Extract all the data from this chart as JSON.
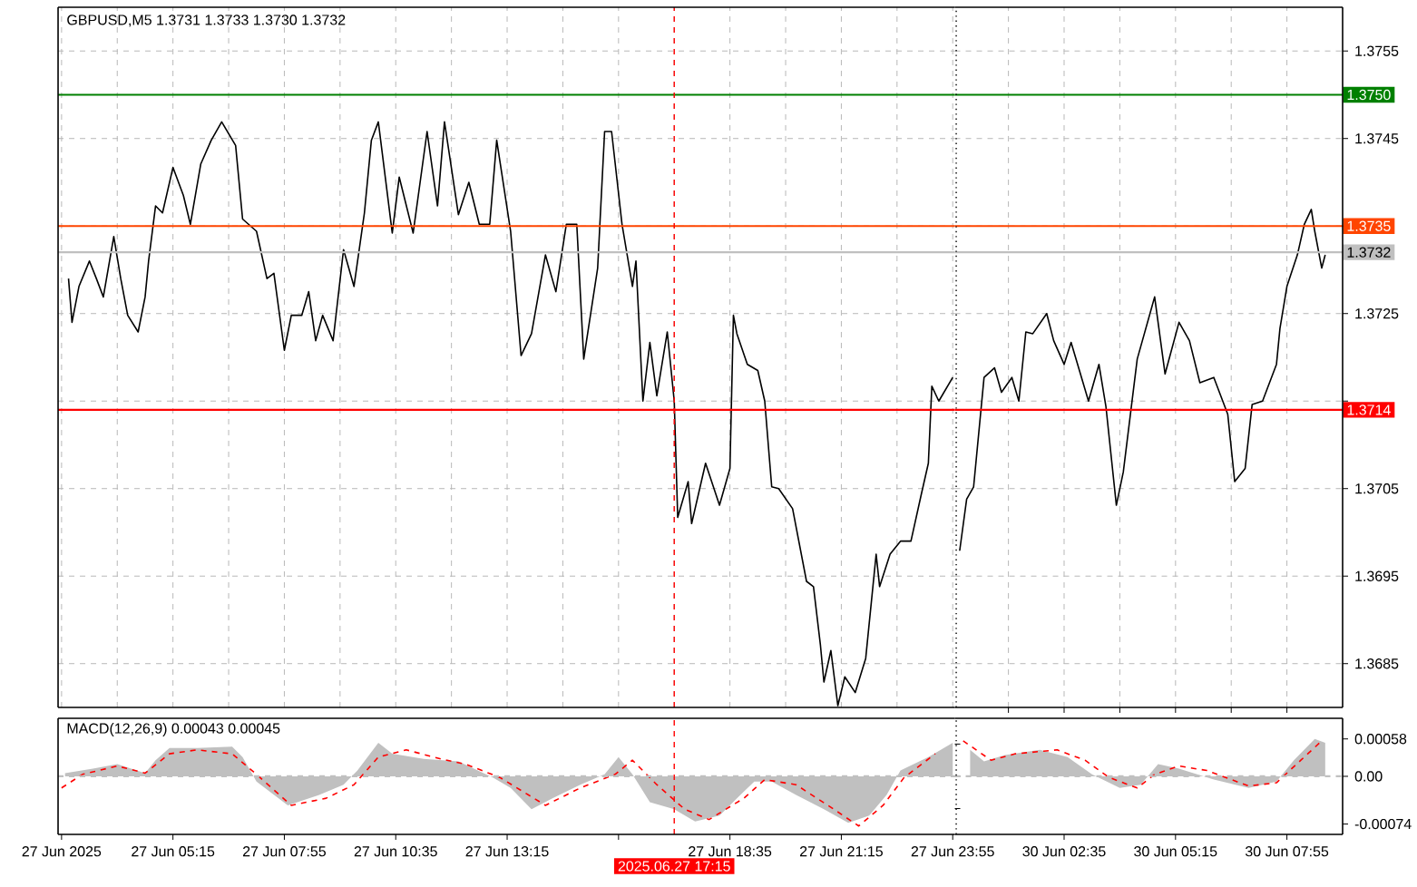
{
  "chart_data": [
    {
      "type": "line",
      "title": "GBPUSD,M5  1.3731 1.3733 1.3730 1.3732",
      "series": [
        {
          "color": "#000000",
          "x": [
            "2025-06-27T02:45",
            "2025-06-27T02:50",
            "2025-06-27T03:00",
            "2025-06-27T03:15",
            "2025-06-27T03:25",
            "2025-06-27T03:35",
            "2025-06-27T03:50",
            "2025-06-27T04:00",
            "2025-06-27T04:10",
            "2025-06-27T04:25",
            "2025-06-27T04:35",
            "2025-06-27T04:40",
            "2025-06-27T04:50",
            "2025-06-27T05:00",
            "2025-06-27T05:15",
            "2025-06-27T05:30",
            "2025-06-27T05:40",
            "2025-06-27T05:55",
            "2025-06-27T06:10",
            "2025-06-27T06:25",
            "2025-06-27T06:45",
            "2025-06-27T06:55",
            "2025-06-27T07:15",
            "2025-06-27T07:30",
            "2025-06-27T07:40",
            "2025-06-27T07:55",
            "2025-06-27T08:05",
            "2025-06-27T08:20",
            "2025-06-27T08:30",
            "2025-06-27T08:40",
            "2025-06-27T08:50",
            "2025-06-27T09:05",
            "2025-06-27T09:20",
            "2025-06-27T09:35",
            "2025-06-27T09:50",
            "2025-06-27T10:00",
            "2025-06-27T10:10",
            "2025-06-27T10:30",
            "2025-06-27T10:40",
            "2025-06-27T11:00",
            "2025-06-27T11:20",
            "2025-06-27T11:35",
            "2025-06-27T11:45",
            "2025-06-27T12:05",
            "2025-06-27T12:20",
            "2025-06-27T12:35",
            "2025-06-27T12:50",
            "2025-06-27T13:00",
            "2025-06-27T13:20",
            "2025-06-27T13:35",
            "2025-06-27T13:50",
            "2025-06-27T14:10",
            "2025-06-27T14:25",
            "2025-06-27T14:40",
            "2025-06-27T14:55",
            "2025-06-27T15:05",
            "2025-06-27T15:25",
            "2025-06-27T15:35",
            "2025-06-27T15:45",
            "2025-06-27T16:00",
            "2025-06-27T16:15",
            "2025-06-27T16:20",
            "2025-06-27T16:30",
            "2025-06-27T16:40",
            "2025-06-27T16:50",
            "2025-06-27T17:05",
            "2025-06-27T17:15",
            "2025-06-27T17:20",
            "2025-06-27T17:35",
            "2025-06-27T17:40",
            "2025-06-27T18:00",
            "2025-06-27T18:20",
            "2025-06-27T18:35",
            "2025-06-27T18:40",
            "2025-06-27T18:45",
            "2025-06-27T19:00",
            "2025-06-27T19:15",
            "2025-06-27T19:25",
            "2025-06-27T19:35",
            "2025-06-27T19:45",
            "2025-06-27T20:05",
            "2025-06-27T20:25",
            "2025-06-27T20:35",
            "2025-06-27T20:45",
            "2025-06-27T20:50",
            "2025-06-27T21:00",
            "2025-06-27T21:10",
            "2025-06-27T21:20",
            "2025-06-27T21:35",
            "2025-06-27T21:50",
            "2025-06-27T22:05",
            "2025-06-27T22:10",
            "2025-06-27T22:25",
            "2025-06-27T22:40",
            "2025-06-27T22:55",
            "2025-06-27T23:10",
            "2025-06-27T23:20",
            "2025-06-27T23:25",
            "2025-06-27T23:35",
            "2025-06-27T23:55"
          ],
          "values": [
            1.3729,
            1.3724,
            1.37281,
            1.3731,
            1.3729,
            1.37269,
            1.37338,
            1.3729,
            1.37248,
            1.37229,
            1.37269,
            1.3731,
            1.37373,
            1.37365,
            1.37417,
            1.37385,
            1.37352,
            1.37421,
            1.37448,
            1.37469,
            1.37442,
            1.37358,
            1.37344,
            1.3729,
            1.37296,
            1.37208,
            1.37248,
            1.37248,
            1.37275,
            1.37219,
            1.37248,
            1.37219,
            1.37323,
            1.37281,
            1.37365,
            1.37448,
            1.37469,
            1.37342,
            1.37406,
            1.37342,
            1.37458,
            1.37373,
            1.37469,
            1.37363,
            1.374,
            1.37352,
            1.37352,
            1.37448,
            1.37344,
            1.37202,
            1.37227,
            1.37317,
            1.37275,
            1.37352,
            1.37352,
            1.37198,
            1.37302,
            1.37458,
            1.37458,
            1.37352,
            1.37281,
            1.3731,
            1.3715,
            1.37217,
            1.37156,
            1.37229,
            1.3715,
            1.37017,
            1.37058,
            1.3701,
            1.37079,
            1.37031,
            1.37073,
            1.37248,
            1.37227,
            1.37192,
            1.37185,
            1.3715,
            1.37052,
            1.3705,
            1.37027,
            1.36944,
            1.36938,
            1.36871,
            1.36829,
            1.36865,
            1.36802,
            1.36835,
            1.36817,
            1.36856,
            1.36975,
            1.36938,
            1.36975,
            1.3699,
            1.3699,
            1.37044,
            1.37079,
            1.37167,
            1.3715,
            1.37177
          ]
        }
      ],
      "xlim": [
        "2025-06-27T02:30",
        "2025-06-27T23:58"
      ],
      "xticks": [
        {
          "value": "2025-06-27T02:35",
          "label": null
        },
        {
          "value": "2025-06-27T03:55",
          "label": null
        },
        {
          "value": "2025-06-27T05:15",
          "label": null
        },
        {
          "value": "2025-06-27T06:35",
          "label": null
        },
        {
          "value": "2025-06-27T07:55",
          "label": null
        },
        {
          "value": "2025-06-27T09:15",
          "label": null
        },
        {
          "value": "2025-06-27T10:35",
          "label": null
        },
        {
          "value": "2025-06-27T11:55",
          "label": null
        },
        {
          "value": "2025-06-27T13:15",
          "label": null
        },
        {
          "value": "2025-06-27T14:35",
          "label": null
        },
        {
          "value": "2025-06-27T15:55",
          "label": null
        },
        {
          "value": "2025-06-27T17:15",
          "label": null
        },
        {
          "value": "2025-06-27T18:35",
          "label": null
        },
        {
          "value": "2025-06-27T19:55",
          "label": null
        },
        {
          "value": "2025-06-27T21:15",
          "label": null
        },
        {
          "value": "2025-06-27T22:35",
          "label": null
        },
        {
          "value": "2025-06-27T23:55",
          "label": null
        }
      ],
      "ylim": [
        1.368,
        1.376
      ],
      "yticks": [
        1.3755,
        1.3745,
        1.3735,
        1.3725,
        1.3715,
        1.3705,
        1.3695,
        1.3685
      ],
      "tick_labels": false,
      "grid": true,
      "ref_lines": [
        {
          "axis": "y",
          "value": 1.375,
          "color": "#008000"
        },
        {
          "axis": "y",
          "value": 1.3735,
          "color": "#ff4500"
        },
        {
          "axis": "y",
          "value": 1.3732,
          "color": "#c0c0c0"
        },
        {
          "axis": "y",
          "value": 1.3714,
          "color": "#ff0000"
        },
        {
          "axis": "x",
          "value": "2025-06-27T17:15",
          "color": "#ff0000",
          "line_style": "dashed"
        }
      ]
    },
    {
      "type": "line",
      "series": [
        {
          "color": "#000000",
          "x": [
            "2025-06-30T00:05",
            "2025-06-30T00:15",
            "2025-06-30T00:25",
            "2025-06-30T00:40",
            "2025-06-30T00:55",
            "2025-06-30T01:05",
            "2025-06-30T01:20",
            "2025-06-30T01:30",
            "2025-06-30T01:40",
            "2025-06-30T01:50",
            "2025-06-30T02:10",
            "2025-06-30T02:20",
            "2025-06-30T02:35",
            "2025-06-30T02:45",
            "2025-06-30T03:10",
            "2025-06-30T03:25",
            "2025-06-30T03:35",
            "2025-06-30T03:50",
            "2025-06-30T04:00",
            "2025-06-30T04:20",
            "2025-06-30T04:45",
            "2025-06-30T05:00",
            "2025-06-30T05:20",
            "2025-06-30T05:35",
            "2025-06-30T05:50",
            "2025-06-30T06:10",
            "2025-06-30T06:30",
            "2025-06-30T06:40",
            "2025-06-30T06:55",
            "2025-06-30T07:05",
            "2025-06-30T07:20",
            "2025-06-30T07:40",
            "2025-06-30T07:45",
            "2025-06-30T07:55",
            "2025-06-30T08:10",
            "2025-06-30T08:20",
            "2025-06-30T08:30",
            "2025-06-30T08:35",
            "2025-06-30T08:45",
            "2025-06-30T08:50"
          ],
          "values": [
            1.36979,
            1.37038,
            1.37052,
            1.37177,
            1.37188,
            1.3716,
            1.37177,
            1.3715,
            1.37229,
            1.37227,
            1.3725,
            1.37219,
            1.37192,
            1.37217,
            1.3715,
            1.37192,
            1.37144,
            1.37031,
            1.37069,
            1.37198,
            1.37269,
            1.37181,
            1.3724,
            1.37219,
            1.37171,
            1.37177,
            1.37135,
            1.37058,
            1.37073,
            1.37146,
            1.3715,
            1.37192,
            1.37233,
            1.37281,
            1.37317,
            1.37352,
            1.37369,
            1.37344,
            1.37302,
            1.37317
          ]
        }
      ],
      "xlim": [
        "2025-06-29T23:58",
        "2025-06-30T09:15"
      ],
      "xticks": [
        {
          "value": "2025-06-30T01:15",
          "label": null
        },
        {
          "value": "2025-06-30T02:35",
          "label": null
        },
        {
          "value": "2025-06-30T03:55",
          "label": null
        },
        {
          "value": "2025-06-30T05:15",
          "label": null
        },
        {
          "value": "2025-06-30T06:35",
          "label": null
        },
        {
          "value": "2025-06-30T07:55",
          "label": null
        }
      ],
      "ylim": [
        1.368,
        1.376
      ],
      "yticks": [
        1.3755,
        1.3745,
        {
          "value": 1.3735,
          "label": null
        },
        1.3725,
        {
          "value": 1.3715,
          "label": null
        },
        1.3705,
        1.3695,
        1.3685
      ],
      "tick_labels": "y",
      "grid": true,
      "ref_lines": [
        {
          "axis": "y",
          "value": 1.375,
          "label": "1.3750",
          "color": "#008000"
        },
        {
          "axis": "y",
          "value": 1.3735,
          "label": "1.3735",
          "color": "#ff4500"
        },
        {
          "axis": "y",
          "value": 1.3732,
          "label": "1.3732",
          "color": "#c0c0c0"
        },
        {
          "axis": "y",
          "value": 1.3714,
          "label": "1.3714",
          "color": "#ff0000"
        },
        {
          "axis": "x",
          "value": "2025-06-30T00:00",
          "color": "#000000",
          "line_style": "dotted"
        }
      ]
    },
    {
      "type": "line",
      "title": "MACD(12,26,9) 0.00043 0.00045",
      "series": [
        {
          "type": "area",
          "color": "#c0c0c0",
          "x": [
            "2025-06-27T02:40",
            "2025-06-27T03:20",
            "2025-06-27T03:55",
            "2025-06-27T04:35",
            "2025-06-27T04:50",
            "2025-06-27T05:10",
            "2025-06-27T05:50",
            "2025-06-27T06:40",
            "2025-06-27T06:55",
            "2025-06-27T07:15",
            "2025-06-27T08:00",
            "2025-06-27T08:45",
            "2025-06-27T09:20",
            "2025-06-27T09:40",
            "2025-06-27T10:10",
            "2025-06-27T10:30",
            "2025-06-27T11:15",
            "2025-06-27T12:05",
            "2025-06-27T12:55",
            "2025-06-27T13:20",
            "2025-06-27T13:50",
            "2025-06-27T14:20",
            "2025-06-27T15:00",
            "2025-06-27T15:35",
            "2025-06-27T15:55",
            "2025-06-27T16:15",
            "2025-06-27T16:40",
            "2025-06-27T17:15",
            "2025-06-27T17:45",
            "2025-06-27T18:20",
            "2025-06-27T18:50",
            "2025-06-27T19:10",
            "2025-06-27T19:35",
            "2025-06-27T20:10",
            "2025-06-27T20:50",
            "2025-06-27T21:25",
            "2025-06-27T21:55",
            "2025-06-27T22:20",
            "2025-06-27T22:40",
            "2025-06-27T23:20",
            "2025-06-27T23:55"
          ],
          "values": [
            5e-05,
            0.00012,
            0.00019,
            5e-05,
            0.00025,
            0.00044,
            0.00044,
            0.00046,
            0.0003,
            -8e-05,
            -0.00045,
            -0.00029,
            -0.00013,
            9e-05,
            0.00052,
            0.00035,
            0.00027,
            0.00023,
            -2e-05,
            -0.00018,
            -0.00051,
            -0.00034,
            -0.00013,
            3e-05,
            0.0003,
            3e-05,
            -0.0004,
            -0.00051,
            -0.0007,
            -0.00061,
            -0.00029,
            -8e-05,
            -8e-05,
            -0.00029,
            -0.00051,
            -0.00072,
            -0.00061,
            -0.00029,
            9e-05,
            0.0003,
            0.00052
          ]
        },
        {
          "type": "line",
          "color": "#ff0000",
          "line_style": "dashed",
          "x": [
            "2025-06-27T02:35",
            "2025-06-27T03:05",
            "2025-06-27T03:55",
            "2025-06-27T04:35",
            "2025-06-27T05:10",
            "2025-06-27T05:50",
            "2025-06-27T06:40",
            "2025-06-27T07:15",
            "2025-06-27T08:05",
            "2025-06-27T08:55",
            "2025-06-27T09:35",
            "2025-06-27T10:10",
            "2025-06-27T10:50",
            "2025-06-27T11:40",
            "2025-06-27T12:15",
            "2025-06-27T13:05",
            "2025-06-27T14:10",
            "2025-06-27T15:00",
            "2025-06-27T15:50",
            "2025-06-27T16:15",
            "2025-06-27T16:50",
            "2025-06-27T17:30",
            "2025-06-27T18:05",
            "2025-06-27T18:55",
            "2025-06-27T19:25",
            "2025-06-27T20:10",
            "2025-06-27T21:00",
            "2025-06-27T21:40",
            "2025-06-27T22:15",
            "2025-06-27T22:45",
            "2025-06-27T23:30"
          ],
          "values": [
            -0.00018,
            3e-05,
            0.00016,
            5e-05,
            0.00035,
            0.00041,
            0.00035,
            3e-05,
            -0.00045,
            -0.00034,
            -0.00013,
            0.0003,
            0.00041,
            0.00027,
            0.00019,
            -2e-05,
            -0.00045,
            -0.00018,
            3e-05,
            0.00025,
            -0.00013,
            -0.00051,
            -0.00067,
            -0.00034,
            -5e-05,
            -0.00013,
            -0.00048,
            -0.00077,
            -0.00045,
            -2e-05,
            0.00035
          ]
        }
      ],
      "xlim": [
        "2025-06-27T02:30",
        "2025-06-27T23:58"
      ],
      "xticks": [
        {
          "value": "2025-06-27T02:35",
          "label": "27 Jun 2025"
        },
        {
          "value": "2025-06-27T05:15",
          "label": "27 Jun 05:15"
        },
        {
          "value": "2025-06-27T07:55",
          "label": "27 Jun 07:55"
        },
        {
          "value": "2025-06-27T10:35",
          "label": "27 Jun 10:35"
        },
        {
          "value": "2025-06-27T13:15",
          "label": "27 Jun 13:15"
        },
        {
          "value": "2025-06-27T15:55",
          "label": null
        },
        {
          "value": "2025-06-27T18:35",
          "label": "27 Jun 18:35"
        },
        {
          "value": "2025-06-27T21:15",
          "label": "27 Jun 21:15"
        },
        {
          "value": "2025-06-27T23:55",
          "label": "27 Jun 23:55"
        }
      ],
      "ylim": [
        -0.0009,
        0.0009
      ],
      "tick_labels": "x",
      "ref_lines": [
        {
          "axis": "y",
          "value": 0,
          "color": "#c0c0c0",
          "line_style": "dashed"
        },
        {
          "axis": "x",
          "value": "2025-06-27T17:15",
          "label": "2025.06.27 17:15",
          "color": "#ff0000",
          "line_style": "dashed"
        }
      ]
    },
    {
      "type": "line",
      "series": [
        {
          "type": "area",
          "color": "#c0c0c0",
          "x": [
            "2025-06-30T00:20",
            "2025-06-30T00:40",
            "2025-06-30T01:10",
            "2025-06-30T02:00",
            "2025-06-30T02:40",
            "2025-06-30T03:15",
            "2025-06-30T03:55",
            "2025-06-30T04:25",
            "2025-06-30T04:50",
            "2025-06-30T05:20",
            "2025-06-30T06:10",
            "2025-06-30T07:00",
            "2025-06-30T07:40",
            "2025-06-30T08:05",
            "2025-06-30T08:35",
            "2025-06-30T08:50"
          ],
          "values": [
            0.00041,
            0.00023,
            0.00033,
            0.00041,
            0.0003,
            3e-05,
            -0.00018,
            -0.00013,
            0.00019,
            0.00012,
            -5e-05,
            -0.00018,
            -8e-05,
            0.00025,
            0.00058,
            0.00052
          ]
        },
        {
          "type": "line",
          "color": "#ff0000",
          "line_style": "dashed",
          "x": [
            "2025-06-30T00:10",
            "2025-06-30T00:50",
            "2025-06-30T01:25",
            "2025-06-30T02:25",
            "2025-06-30T03:05",
            "2025-06-30T03:40",
            "2025-06-30T04:20",
            "2025-06-30T04:45",
            "2025-06-30T05:20",
            "2025-06-30T06:00",
            "2025-06-30T07:00",
            "2025-06-30T07:40",
            "2025-06-30T08:15",
            "2025-06-30T08:45"
          ],
          "values": [
            0.00055,
            0.00025,
            0.00035,
            0.00041,
            0.00025,
            -2e-05,
            -0.00018,
            3e-05,
            0.00016,
            9e-05,
            -0.00015,
            -0.0001,
            0.00025,
            0.00055
          ]
        }
      ],
      "xlim": [
        "2025-06-29T23:58",
        "2025-06-30T09:15"
      ],
      "xticks": [
        {
          "value": "2025-06-30T02:35",
          "label": "30 Jun 02:35"
        },
        {
          "value": "2025-06-30T05:15",
          "label": "30 Jun 05:15"
        },
        {
          "value": "2025-06-30T07:55",
          "label": "30 Jun 07:55"
        }
      ],
      "ylim": [
        -0.0009,
        0.0009
      ],
      "yticks": [
        {
          "value": 0.00058,
          "label": "0.00058"
        },
        {
          "value": 0,
          "label": "0.00"
        },
        {
          "value": -0.00074,
          "label": "-0.00074"
        }
      ],
      "ref_lines": [
        {
          "axis": "y",
          "value": 0,
          "color": "#c0c0c0",
          "line_style": "dashed"
        },
        {
          "axis": "x",
          "value": "2025-06-30T00:00",
          "color": "#000000",
          "line_style": "dotted"
        }
      ]
    }
  ]
}
